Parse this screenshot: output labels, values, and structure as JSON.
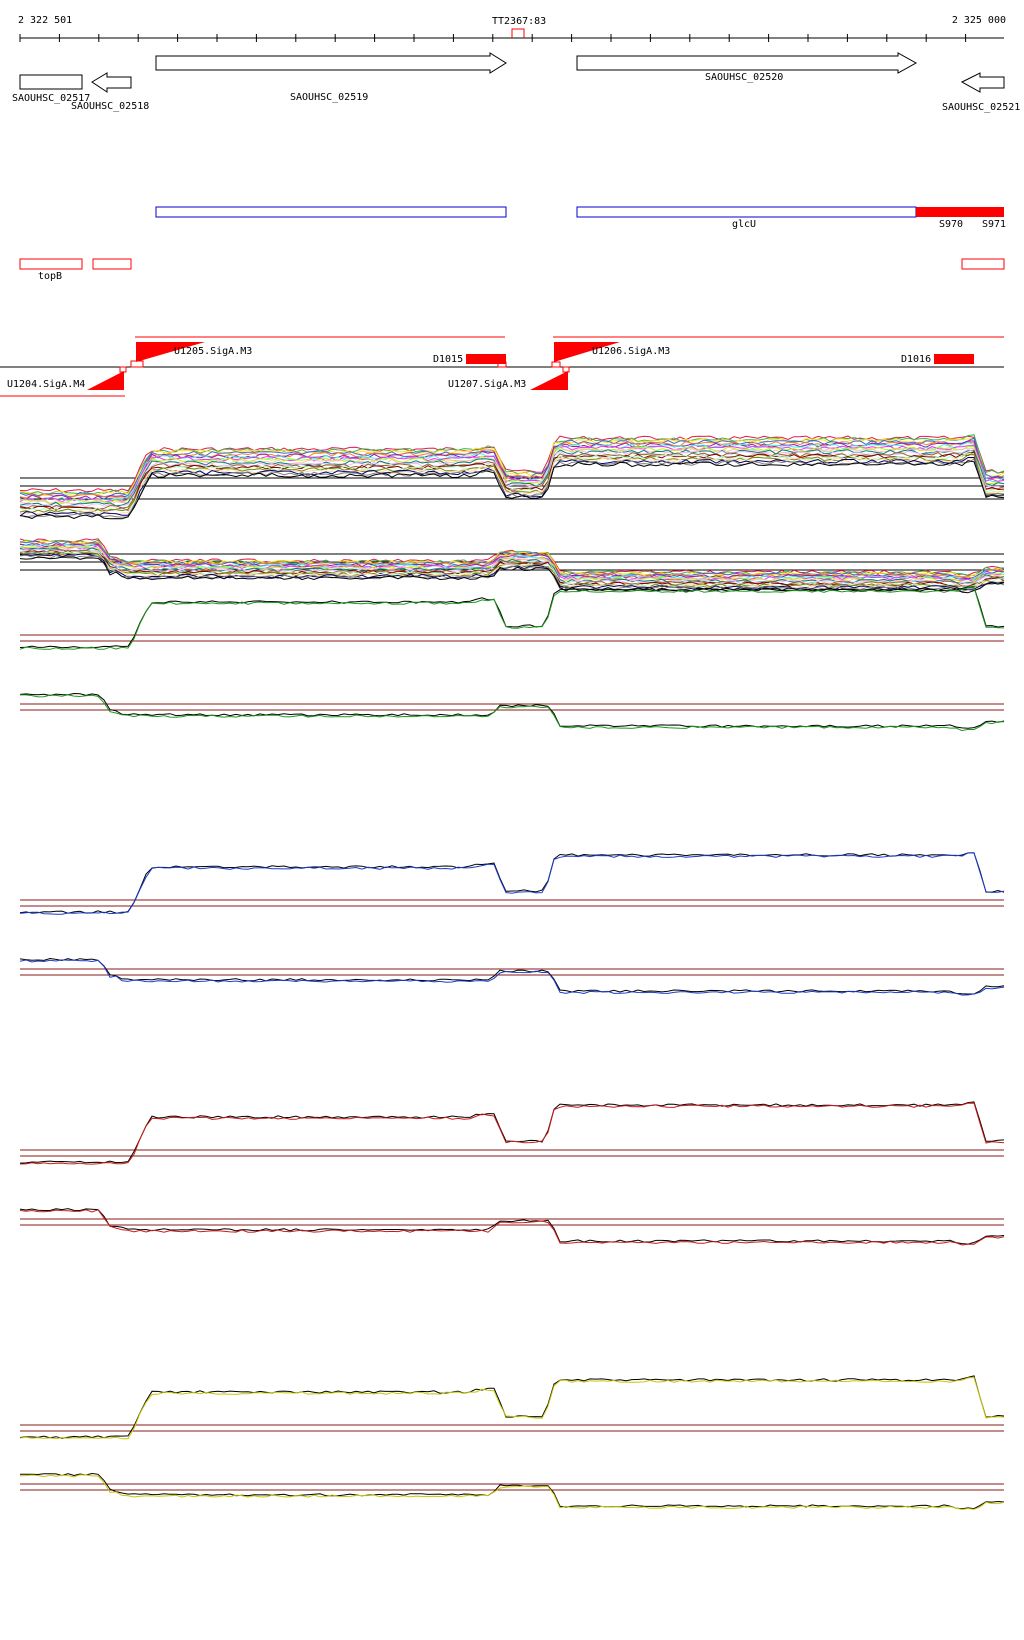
{
  "ruler": {
    "start_label": "2 322 501",
    "end_label": "2 325 000",
    "terminator_label": "TT2367:83"
  },
  "genes": [
    {
      "id": "g1",
      "label": "SAOUHSC_02517",
      "strand": "box"
    },
    {
      "id": "g2",
      "label": "SAOUHSC_02518",
      "strand": "-"
    },
    {
      "id": "g3",
      "label": "SAOUHSC_02519",
      "strand": "+"
    },
    {
      "id": "g4",
      "label": "SAOUHSC_02520",
      "strand": "+"
    },
    {
      "id": "g5",
      "label": "SAOUHSC_02521",
      "strand": "-"
    }
  ],
  "annotation_labels": {
    "glcU": "glcU",
    "S970": "S970",
    "S971": "S971",
    "topB": "topB"
  },
  "promoters": {
    "u1204": "U1204.SigA.M4",
    "u1205": "U1205.SigA.M3",
    "u1206": "U1206.SigA.M3",
    "u1207": "U1207.SigA.M3",
    "d1015": "D1015",
    "d1016": "D1016"
  },
  "colors": {
    "axis": "#000000",
    "gene_outline": "#000000",
    "cds_box": "#0000cc",
    "feature_red": "#ff0000",
    "baseline": "#8b1a1a",
    "track_green": "#1a9a1a",
    "track_blue": "#1c3ccc",
    "track_red": "#cc1a1a",
    "track_yellow": "#c8c800"
  }
}
